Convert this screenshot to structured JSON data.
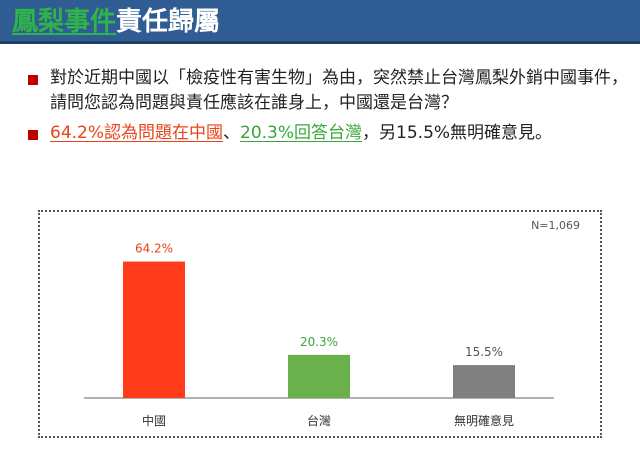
{
  "slide": {
    "title_highlight": "鳳梨事件",
    "title_rest": "責任歸屬",
    "question": "對於近期中國以「檢疫性有害生物」為由，突然禁止台灣鳳梨外銷中國事件，請問您認為問題與責任應該在誰身上，中國還是台灣？",
    "finding_part1": "64.2%認為問題在中國",
    "finding_sep1": "、",
    "finding_part2": "20.3%回答台灣",
    "finding_part3": "，另15.5%無明確意見。"
  },
  "colors": {
    "title_bar": "#2f5d93",
    "bullet": "#c00000",
    "china": "#ff3b1a",
    "taiwan": "#6ab04c",
    "no_opinion": "#808080"
  },
  "chart_data": {
    "type": "bar",
    "sample_size": "N=1,069",
    "categories": [
      "中國",
      "台灣",
      "無明確意見"
    ],
    "values": [
      64.2,
      20.3,
      15.5
    ],
    "value_labels": [
      "64.2%",
      "20.3%",
      "15.5%"
    ],
    "colors": [
      "#ff3b1a",
      "#6ab04c",
      "#808080"
    ],
    "label_colors": [
      "#e8431b",
      "#3aa63a",
      "#555555"
    ],
    "ylim": [
      0,
      80
    ],
    "grid": false,
    "title": "",
    "xlabel": "",
    "ylabel": ""
  }
}
